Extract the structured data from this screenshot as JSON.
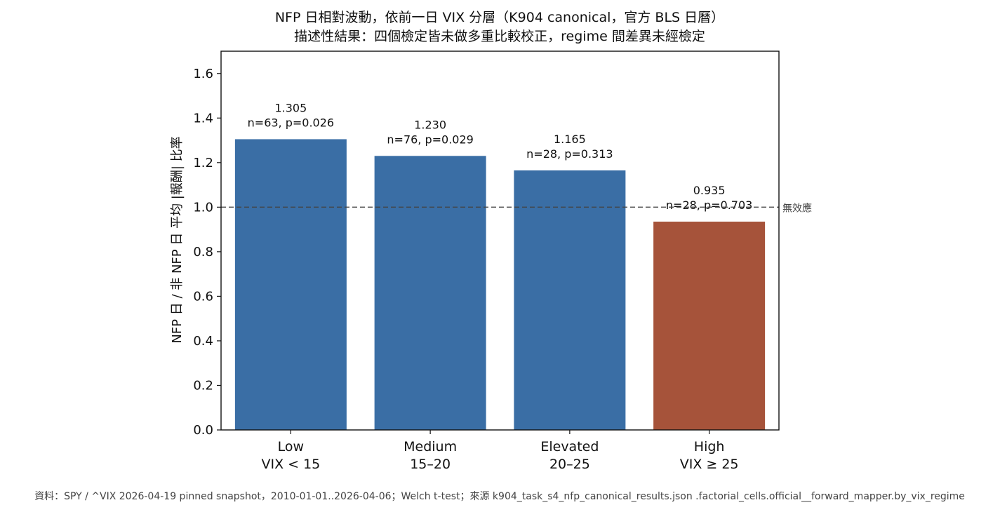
{
  "chart_data": {
    "type": "bar",
    "title_lines": [
      "NFP 日相對波動，依前一日 VIX 分層（K904 canonical，官方 BLS 日曆）",
      "描述性結果：四個檢定皆未做多重比較校正，regime 間差異未經檢定"
    ],
    "ylabel": "NFP 日 / 非 NFP 日 平均 |報酬| 比率",
    "ylim": [
      0,
      1.7
    ],
    "yticks": [
      "0.0",
      "0.2",
      "0.4",
      "0.6",
      "0.8",
      "1.0",
      "1.2",
      "1.4",
      "1.6"
    ],
    "ytick_values": [
      0,
      0.2,
      0.4,
      0.6,
      0.8,
      1.0,
      1.2,
      1.4,
      1.6
    ],
    "categories": [
      {
        "name": "Low",
        "range": "VIX < 15"
      },
      {
        "name": "Medium",
        "range": "15–20"
      },
      {
        "name": "Elevated",
        "range": "20–25"
      },
      {
        "name": "High",
        "range": "VIX ≥ 25"
      }
    ],
    "values": [
      1.305,
      1.23,
      1.165,
      0.935
    ],
    "value_labels": [
      "1.305",
      "1.230",
      "1.165",
      "0.935"
    ],
    "stat_labels": [
      "n=63, p=0.026",
      "n=76, p=0.029",
      "n=28, p=0.313",
      "n=28, p=0.703"
    ],
    "colors": [
      "#3a6ea5",
      "#3a6ea5",
      "#3a6ea5",
      "#a6533a"
    ],
    "reference_line": {
      "value": 1.0,
      "label": "無效應",
      "color": "#444444"
    },
    "grid": false,
    "footer": "資料：SPY / ^VIX 2026-04-19 pinned snapshot，2010-01-01..2026-04-06；Welch t-test；來源 k904_task_s4_nfp_canonical_results.json .factorial_cells.official__forward_mapper.by_vix_regime"
  }
}
